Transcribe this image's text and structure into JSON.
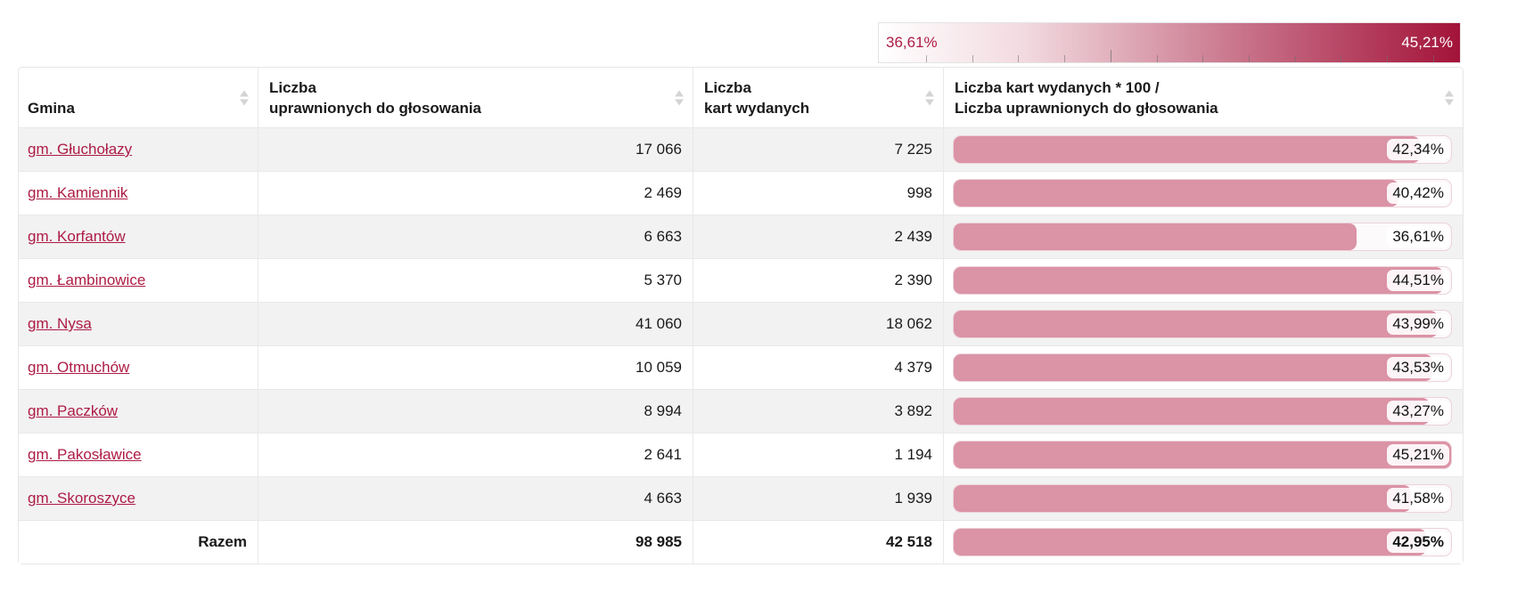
{
  "legend": {
    "min_label": "36,61%",
    "max_label": "45,21%",
    "gradient_start_color": "#ffffff",
    "gradient_end_color": "#a31339",
    "text_min_color": "#ad1b45",
    "text_max_color": "#ffffff"
  },
  "table": {
    "columns": [
      {
        "line1": "Gmina",
        "line2": ""
      },
      {
        "line1": "Liczba",
        "line2": "uprawnionych do głosowania"
      },
      {
        "line1": "Liczba",
        "line2": "kart wydanych"
      },
      {
        "line1": "Liczba kart wydanych * 100 /",
        "line2": "Liczba uprawnionych do głosowania"
      }
    ],
    "rows": [
      {
        "name": "gm. Głuchołazy",
        "eligible": "17 066",
        "issued": "7 225",
        "percent": "42,34%",
        "percent_value": 42.34
      },
      {
        "name": "gm. Kamiennik",
        "eligible": "2 469",
        "issued": "998",
        "percent": "40,42%",
        "percent_value": 40.42
      },
      {
        "name": "gm. Korfantów",
        "eligible": "6 663",
        "issued": "2 439",
        "percent": "36,61%",
        "percent_value": 36.61
      },
      {
        "name": "gm. Łambinowice",
        "eligible": "5 370",
        "issued": "2 390",
        "percent": "44,51%",
        "percent_value": 44.51
      },
      {
        "name": "gm. Nysa",
        "eligible": "41 060",
        "issued": "18 062",
        "percent": "43,99%",
        "percent_value": 43.99
      },
      {
        "name": "gm. Otmuchów",
        "eligible": "10 059",
        "issued": "4 379",
        "percent": "43,53%",
        "percent_value": 43.53
      },
      {
        "name": "gm. Paczków",
        "eligible": "8 994",
        "issued": "3 892",
        "percent": "43,27%",
        "percent_value": 43.27
      },
      {
        "name": "gm. Pakosławice",
        "eligible": "2 641",
        "issued": "1 194",
        "percent": "45,21%",
        "percent_value": 45.21
      },
      {
        "name": "gm. Skoroszyce",
        "eligible": "4 663",
        "issued": "1 939",
        "percent": "41,58%",
        "percent_value": 41.58
      }
    ],
    "total": {
      "label": "Razem",
      "eligible": "98 985",
      "issued": "42 518",
      "percent": "42,95%",
      "percent_value": 42.95
    }
  },
  "chart_data": {
    "type": "bar",
    "title": "Liczba kart wydanych * 100 / Liczba uprawnionych do głosowania",
    "categories": [
      "gm. Głuchołazy",
      "gm. Kamiennik",
      "gm. Korfantów",
      "gm. Łambinowice",
      "gm. Nysa",
      "gm. Otmuchów",
      "gm. Paczków",
      "gm. Pakosławice",
      "gm. Skoroszyce",
      "Razem"
    ],
    "values": [
      42.34,
      40.42,
      36.61,
      44.51,
      43.99,
      43.53,
      43.27,
      45.21,
      41.58,
      42.95
    ],
    "min_value": 36.61,
    "max_value": 45.21,
    "bar_color": "#db93a6",
    "xlabel": "",
    "ylabel": "",
    "legend_position": "top-right"
  }
}
